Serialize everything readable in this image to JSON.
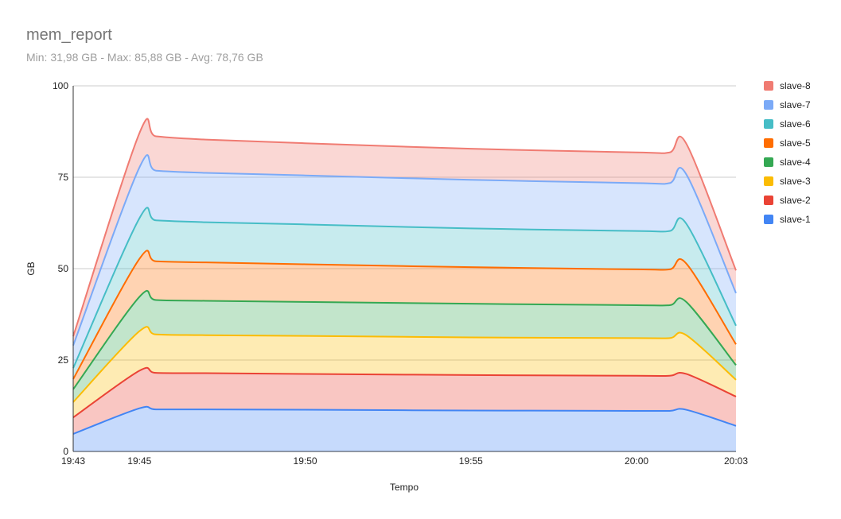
{
  "chart_data": {
    "type": "area",
    "stacked": true,
    "title": "mem_report",
    "subtitle": "Min: 31,98 GB - Max: 85,88 GB - Avg: 78,76 GB",
    "xlabel": "Tempo",
    "ylabel": "GB",
    "ylim": [
      0,
      100
    ],
    "yticks": [
      0,
      25,
      50,
      75,
      100
    ],
    "x": [
      "19:43",
      "19:45",
      "19:45:30",
      "19:47",
      "19:50",
      "19:55",
      "20:00",
      "20:01",
      "20:01:30",
      "20:03"
    ],
    "xticks": [
      {
        "label": "19:43",
        "pos": "19:43"
      },
      {
        "label": "19:45",
        "pos": "19:45"
      },
      {
        "label": "19:50",
        "pos": "19:50"
      },
      {
        "label": "19:55",
        "pos": "19:55"
      },
      {
        "label": "20:00",
        "pos": "20:00"
      },
      {
        "label": "20:03",
        "pos": "20:03"
      }
    ],
    "grid": true,
    "legend_position": "right",
    "series": [
      {
        "name": "slave-1",
        "color": "#4285f4",
        "values": [
          4.8,
          11.8,
          11.5,
          11.5,
          11.4,
          11.2,
          11.1,
          11.1,
          11.4,
          7.0
        ]
      },
      {
        "name": "slave-2",
        "color": "#ea4335",
        "values": [
          4.5,
          10.3,
          10.0,
          9.9,
          9.8,
          9.7,
          9.6,
          9.6,
          9.8,
          8.0
        ]
      },
      {
        "name": "slave-3",
        "color": "#fbbc04",
        "values": [
          4.2,
          10.8,
          10.5,
          10.4,
          10.4,
          10.3,
          10.3,
          10.3,
          10.6,
          4.6
        ]
      },
      {
        "name": "slave-4",
        "color": "#34a853",
        "values": [
          3.5,
          9.4,
          9.4,
          9.4,
          9.3,
          9.2,
          9.0,
          9.0,
          9.1,
          4.0
        ]
      },
      {
        "name": "slave-5",
        "color": "#ff6d01",
        "values": [
          2.8,
          10.4,
          10.6,
          10.5,
          10.3,
          10.0,
          9.8,
          9.8,
          10.5,
          5.7
        ]
      },
      {
        "name": "slave-6",
        "color": "#46bdc6",
        "values": [
          3.0,
          11.1,
          11.2,
          11.0,
          10.9,
          10.6,
          10.5,
          10.5,
          10.9,
          5.1
        ]
      },
      {
        "name": "slave-7",
        "color": "#7baaf7",
        "values": [
          6.2,
          13.9,
          13.6,
          13.5,
          13.4,
          13.3,
          13.1,
          13.1,
          13.5,
          8.9
        ]
      },
      {
        "name": "slave-8",
        "color": "#f07b72",
        "values": [
          2.5,
          9.4,
          9.4,
          9.1,
          8.8,
          8.5,
          8.4,
          8.4,
          8.4,
          6.2
        ]
      }
    ]
  }
}
